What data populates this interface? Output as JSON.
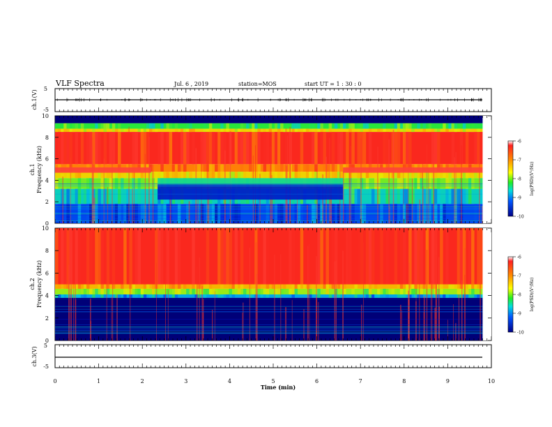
{
  "header": {
    "title": "VLF Spectra",
    "date": "Jul. 6 , 2019",
    "station": "station=MOS",
    "start": "start UT = 1 : 30 : 0"
  },
  "colorbar": {
    "label": "log(PSD)(V²/Hz)",
    "ticks": [
      "-6",
      "-7",
      "-8",
      "-9",
      "-10"
    ],
    "colors": [
      "#ffffff",
      "#ff2020",
      "#ff8c00",
      "#ffff00",
      "#22ee22",
      "#00dddd",
      "#0055ff",
      "#000088"
    ]
  },
  "chart_data": [
    {
      "type": "line",
      "panel": "ch1-waveform",
      "ylabel": "ch.1(V)",
      "yticks": [
        "5",
        "-5"
      ],
      "ylim": [
        -5,
        5
      ],
      "series": [
        {
          "x": [
            0,
            9.8
          ],
          "values": [
            0,
            0
          ]
        }
      ]
    },
    {
      "type": "heatmap",
      "panel": "ch1-spectrogram",
      "ylabel": "ch.1\nFrequency (kHz)",
      "yticks": [
        "0",
        "2",
        "4",
        "6",
        "8",
        "10"
      ],
      "xlim": [
        0,
        9.8
      ],
      "ylim": [
        0,
        10
      ],
      "zlim": [
        -10,
        -6
      ],
      "bands": [
        {
          "f": [
            9.3,
            10.0
          ],
          "z": -10.0
        },
        {
          "f": [
            8.8,
            9.3
          ],
          "z": -8.5
        },
        {
          "f": [
            8.5,
            8.8
          ],
          "z": -7.8
        },
        {
          "f": [
            5.5,
            8.5
          ],
          "z": -6.9
        },
        {
          "f": [
            4.8,
            5.5
          ],
          "z": -7.3
        },
        {
          "f": [
            4.2,
            4.8
          ],
          "z": -7.8
        },
        {
          "f": [
            3.2,
            4.2
          ],
          "z": -8.3
        },
        {
          "f": [
            1.8,
            3.2
          ],
          "z": -8.8
        },
        {
          "f": [
            0.0,
            1.8
          ],
          "z": -9.3
        }
      ],
      "features": [
        {
          "t": [
            2.35,
            6.6
          ],
          "f": [
            3.6,
            4.2
          ],
          "z": -8.7,
          "note": "suppressed"
        },
        {
          "t": [
            2.35,
            6.6
          ],
          "f": [
            2.2,
            3.6
          ],
          "z": -9.6,
          "note": "suppressed"
        },
        {
          "t": [
            0.0,
            2.2
          ],
          "f": [
            4.7,
            5.2
          ],
          "z": -6.3,
          "note": "tone"
        },
        {
          "t": [
            6.6,
            9.8
          ],
          "f": [
            4.7,
            5.2
          ],
          "z": -6.3,
          "note": "tone"
        }
      ]
    },
    {
      "type": "heatmap",
      "panel": "ch2-spectrogram",
      "ylabel": "ch.2\nFrequency (kHz)",
      "yticks": [
        "0",
        "2",
        "4",
        "6",
        "8",
        "10"
      ],
      "xlim": [
        0,
        9.8
      ],
      "ylim": [
        0,
        10
      ],
      "zlim": [
        -10,
        -6
      ],
      "bands": [
        {
          "f": [
            5.0,
            10.0
          ],
          "z": -6.9
        },
        {
          "f": [
            4.6,
            5.0
          ],
          "z": -7.6
        },
        {
          "f": [
            4.1,
            4.6
          ],
          "z": -8.2
        },
        {
          "f": [
            3.8,
            4.1
          ],
          "z": -9.0
        },
        {
          "f": [
            0.0,
            3.8
          ],
          "z": -10.0
        }
      ],
      "features": []
    },
    {
      "type": "line",
      "panel": "ch3-waveform",
      "ylabel": "ch.3(V)",
      "yticks": [
        "5",
        "-5"
      ],
      "ylim": [
        -5,
        5
      ],
      "series": [
        {
          "x": [
            0,
            9.8
          ],
          "values": [
            -1.5,
            -1.5
          ]
        }
      ]
    }
  ],
  "xaxis": {
    "label": "Time (min)",
    "ticks": [
      "0",
      "1",
      "2",
      "3",
      "4",
      "5",
      "6",
      "7",
      "8",
      "9",
      "10"
    ],
    "xlim": [
      0,
      10
    ]
  }
}
